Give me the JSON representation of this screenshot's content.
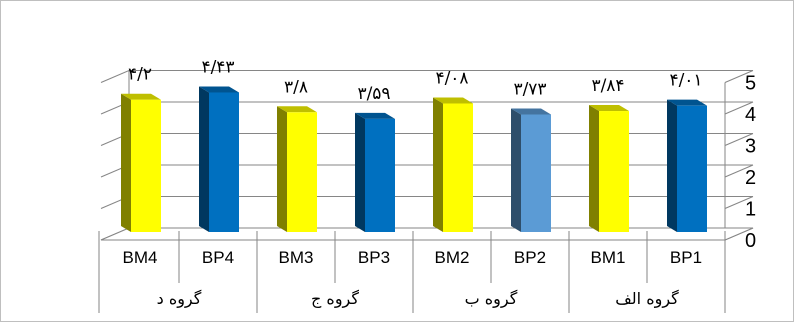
{
  "chart_data": {
    "type": "bar",
    "ylim": [
      0,
      5
    ],
    "yticks": [
      "0",
      "1",
      "2",
      "3",
      "4",
      "5"
    ],
    "grid": true,
    "bars": [
      {
        "category": "BM4",
        "group": "گروه د",
        "value": 4.2,
        "label": "۴/۲",
        "color": "#ffff00"
      },
      {
        "category": "BP4",
        "group": "گروه د",
        "value": 4.43,
        "label": "۴/۴۳",
        "color": "#0070c0"
      },
      {
        "category": "BM3",
        "group": "گروه ج",
        "value": 3.8,
        "label": "۳/۸",
        "color": "#ffff00"
      },
      {
        "category": "BP3",
        "group": "گروه ج",
        "value": 3.59,
        "label": "۳/۵۹",
        "color": "#0070c0"
      },
      {
        "category": "BM2",
        "group": "گروه ب",
        "value": 4.08,
        "label": "۴/۰۸",
        "color": "#ffff00"
      },
      {
        "category": "BP2",
        "group": "گروه ب",
        "value": 3.73,
        "label": "۳/۷۳",
        "color": "#5b9bd5"
      },
      {
        "category": "BM1",
        "group": "گروه الف",
        "value": 3.84,
        "label": "۳/۸۴",
        "color": "#ffff00"
      },
      {
        "category": "BP1",
        "group": "گروه الف",
        "value": 4.01,
        "label": "۴/۰۱",
        "color": "#0070c0"
      }
    ],
    "groups": [
      "گروه د",
      "گروه ج",
      "گروه ب",
      "گروه الف"
    ]
  }
}
